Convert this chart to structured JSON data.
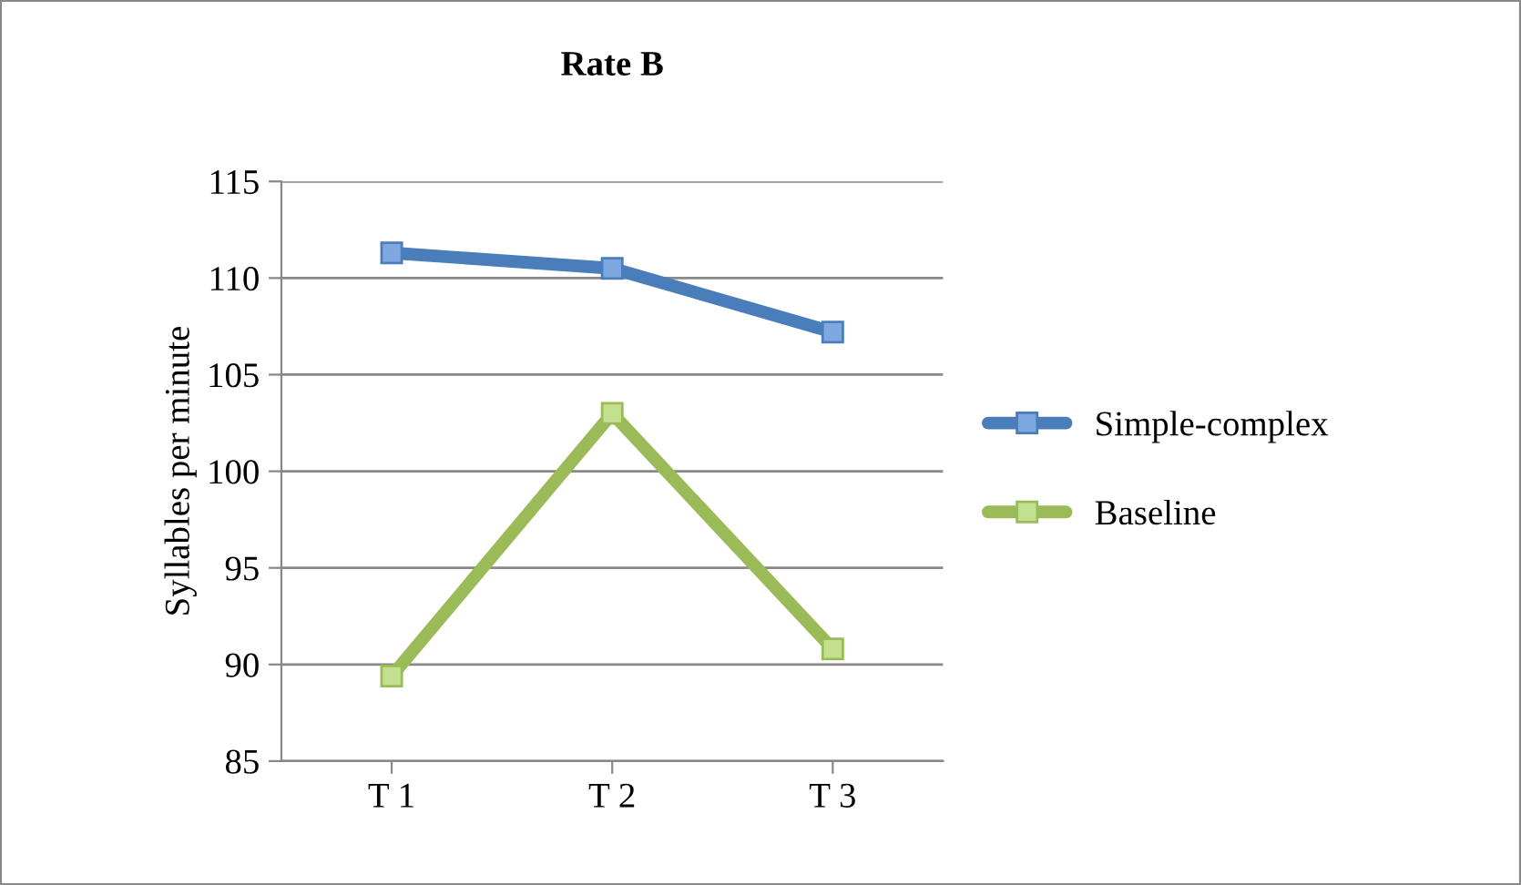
{
  "chart_data": {
    "type": "line",
    "title": "Rate B",
    "ylabel": "Syllables per minute",
    "categories": [
      "T 1",
      "T 2",
      "T 3"
    ],
    "series": [
      {
        "name": "Simple-complex",
        "color": "#4a7ebb",
        "values": [
          111.3,
          110.5,
          107.2
        ]
      },
      {
        "name": "Baseline",
        "color": "#9bbb59",
        "values": [
          89.4,
          103.0,
          90.8
        ]
      }
    ],
    "ylim": [
      85,
      115
    ],
    "yticks": [
      85,
      90,
      95,
      100,
      105,
      110,
      115
    ],
    "grid": "y",
    "legend": "right",
    "marker": "square",
    "line_style": "solid"
  }
}
